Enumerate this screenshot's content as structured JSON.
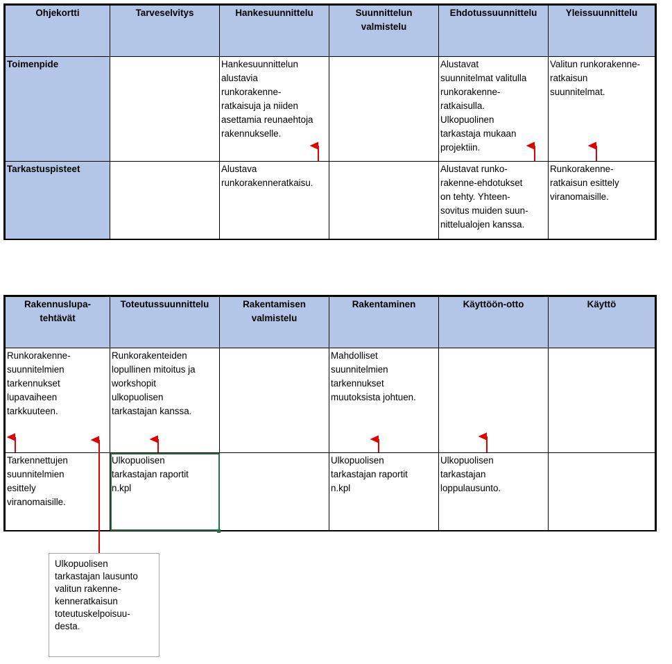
{
  "top_table": {
    "headers": [
      "Ohjekortti",
      "Tarveselvitys",
      "Hankesuunnittelu",
      "Suunnittelun\nvalmistelu",
      "Ehdotussuunnittelu",
      "Yleissuunnittelu"
    ],
    "rows": [
      {
        "label": "Toimenpide",
        "cells": [
          "",
          "Hankesuunnittelun\nalustavia\nrunkorakenne-\nratkaisuja ja niiden\nasettamia reunaehtoja\nrakennukselle.",
          "",
          "Alustavat\nsuunnitelmat valitulla\nrunkorakenne-\nratkaisulla.\nUlkopuolinen\ntarkastaja mukaan\nprojektiin.",
          "Valitun runkorakenne-\nratkaisun\nsuunnitelmat."
        ]
      },
      {
        "label": "Tarkastuspisteet",
        "cells": [
          "",
          "Alustava\nrunkorakenneratkaisu.",
          "",
          "Alustavat runko-\nrakenne-ehdotukset\non tehty. Yhteen-\nsovitus muiden suun-\nnittelualojen kanssa.",
          "Runkorakenne-\nratkaisun esittely\nviranomaisille."
        ]
      }
    ]
  },
  "bottom_table": {
    "headers": [
      "Rakennuslupa-\ntehtävät",
      "Toteutussuunnittelu",
      "Rakentamisen\nvalmistelu",
      "Rakentaminen",
      "Käyttöön-otto",
      "Käyttö"
    ],
    "rows": [
      {
        "cells": [
          "Runkorakenne-\nsuunnitelmien\ntarkennukset\nlupavaiheen\ntarkkuuteen.",
          "Runkorakenteiden\nlopullinen mitoitus ja\nworkshopit\nulkopuolisen\ntarkastajan kanssa.",
          "",
          "Mahdolliset\nsuunnitelmien\ntarkennukset\nmuutoksista johtuen.",
          "",
          ""
        ]
      },
      {
        "cells": [
          "Tarkennettujen\nsuunnitelmien\nesittely\nviranomaisille.",
          "Ulkopuolisen\ntarkastajan raportit\nn.kpl",
          "",
          "Ulkopuolisen\ntarkastajan raportit\nn.kpl",
          "Ulkopuolisen\ntarkastajan\nloppulausunto.",
          ""
        ]
      }
    ]
  },
  "note": {
    "text": "Ulkopuolisen\ntarkastajan lausunto\nvalitun rakenne-\nkenneratkaisun\ntoteutuskelpoisuu-\ndesta."
  },
  "colors": {
    "header_fill": "#b4c6e7",
    "arrow": "#e00000",
    "selection": "#217346"
  }
}
